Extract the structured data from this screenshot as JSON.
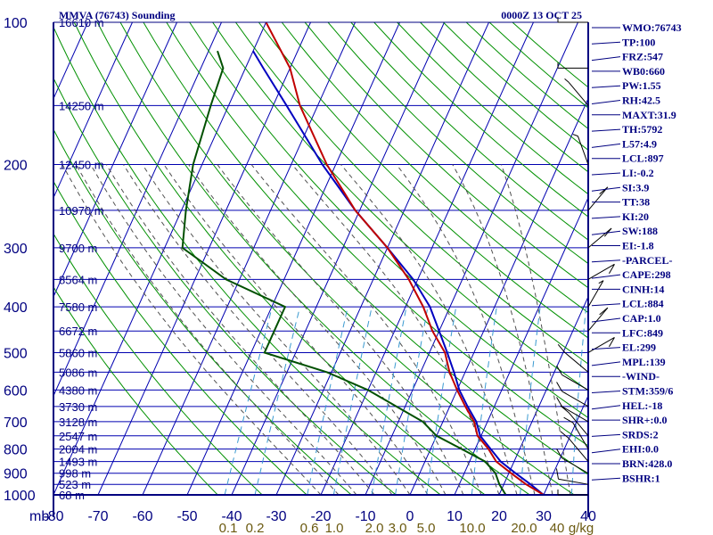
{
  "header": {
    "title": "MMVA (76743) Sounding",
    "datetime": "0000Z 13 OCT 25"
  },
  "chart_data": {
    "type": "skew-t log-p sounding",
    "station": "MMVA",
    "wmo": "76743",
    "pressure_axis": {
      "unit": "mb",
      "range": [
        1000,
        100
      ],
      "ticks": [
        100,
        200,
        300,
        400,
        500,
        600,
        700,
        800,
        900,
        1000
      ]
    },
    "temperature_axis": {
      "unit": "C",
      "range": [
        -80,
        40
      ],
      "ticks": [
        -80,
        -70,
        -60,
        -50,
        -40,
        -30,
        -20,
        -10,
        0,
        10,
        20,
        30,
        40
      ]
    },
    "height_labels": [
      {
        "p": 100,
        "text": "16610 m"
      },
      {
        "p": 150,
        "text": "14250 m"
      },
      {
        "p": 200,
        "text": "12450 m"
      },
      {
        "p": 250,
        "text": "10970 m"
      },
      {
        "p": 300,
        "text": "9700 m"
      },
      {
        "p": 350,
        "text": "8564 m"
      },
      {
        "p": 400,
        "text": "7580 m"
      },
      {
        "p": 450,
        "text": "6672 m"
      },
      {
        "p": 500,
        "text": "5860 m"
      },
      {
        "p": 550,
        "text": "5086 m"
      },
      {
        "p": 600,
        "text": "4380 m"
      },
      {
        "p": 650,
        "text": "3730 m"
      },
      {
        "p": 700,
        "text": "3128 m"
      },
      {
        "p": 750,
        "text": "2547 m"
      },
      {
        "p": 800,
        "text": "2004 m"
      },
      {
        "p": 850,
        "text": "1493 m"
      },
      {
        "p": 900,
        "text": "998 m"
      },
      {
        "p": 950,
        "text": "523 m"
      },
      {
        "p": 1000,
        "text": "68 m"
      }
    ],
    "mixing_ratio_labels": [
      "0.1",
      "0.2",
      "0.6",
      "1.0",
      "2.0",
      "3.0",
      "5.0",
      "10.0",
      "20.0",
      "40",
      "g/kg"
    ],
    "temperature_profile": [
      {
        "p": 1000,
        "t": 30
      },
      {
        "p": 950,
        "t": 25
      },
      {
        "p": 900,
        "t": 20.5
      },
      {
        "p": 850,
        "t": 16
      },
      {
        "p": 800,
        "t": 13
      },
      {
        "p": 750,
        "t": 9.2
      },
      {
        "p": 700,
        "t": 7
      },
      {
        "p": 650,
        "t": 3.5
      },
      {
        "p": 600,
        "t": 0
      },
      {
        "p": 550,
        "t": -3.5
      },
      {
        "p": 500,
        "t": -6.5
      },
      {
        "p": 450,
        "t": -11.5
      },
      {
        "p": 400,
        "t": -16
      },
      {
        "p": 350,
        "t": -22
      },
      {
        "p": 300,
        "t": -30
      },
      {
        "p": 250,
        "t": -41
      },
      {
        "p": 200,
        "t": -52
      },
      {
        "p": 150,
        "t": -64
      },
      {
        "p": 125,
        "t": -70
      },
      {
        "p": 100,
        "t": -80
      }
    ],
    "dewpoint_profile": [
      {
        "p": 1000,
        "t": 21.5
      },
      {
        "p": 950,
        "t": 19
      },
      {
        "p": 900,
        "t": 17
      },
      {
        "p": 850,
        "t": 13.5
      },
      {
        "p": 800,
        "t": 7
      },
      {
        "p": 750,
        "t": 0
      },
      {
        "p": 700,
        "t": -4.5
      },
      {
        "p": 650,
        "t": -12
      },
      {
        "p": 600,
        "t": -20
      },
      {
        "p": 550,
        "t": -31
      },
      {
        "p": 500,
        "t": -47
      },
      {
        "p": 450,
        "t": -47
      },
      {
        "p": 400,
        "t": -47
      },
      {
        "p": 350,
        "t": -63
      },
      {
        "p": 300,
        "t": -76
      },
      {
        "p": 250,
        "t": -79
      },
      {
        "p": 200,
        "t": -82
      },
      {
        "p": 150,
        "t": -84
      },
      {
        "p": 125,
        "t": -85
      },
      {
        "p": 115,
        "t": -88
      }
    ],
    "parcel_profile": [
      {
        "p": 1000,
        "t": 30
      },
      {
        "p": 950,
        "t": 26
      },
      {
        "p": 900,
        "t": 21.5
      },
      {
        "p": 850,
        "t": 17
      },
      {
        "p": 800,
        "t": 13.5
      },
      {
        "p": 750,
        "t": 9.8
      },
      {
        "p": 700,
        "t": 7.5
      },
      {
        "p": 650,
        "t": 4
      },
      {
        "p": 600,
        "t": 0.5
      },
      {
        "p": 550,
        "t": -2.5
      },
      {
        "p": 500,
        "t": -6
      },
      {
        "p": 450,
        "t": -10
      },
      {
        "p": 400,
        "t": -14.5
      },
      {
        "p": 350,
        "t": -21
      },
      {
        "p": 300,
        "t": -30
      },
      {
        "p": 250,
        "t": -41
      },
      {
        "p": 200,
        "t": -53
      },
      {
        "p": 150,
        "t": -67
      },
      {
        "p": 125,
        "t": -76
      },
      {
        "p": 115,
        "t": -80
      }
    ],
    "wind_profile": [
      {
        "p": 1000,
        "dir": 90,
        "spd": 5
      },
      {
        "p": 950,
        "dir": 80,
        "spd": 10
      },
      {
        "p": 900,
        "dir": 60,
        "spd": 10
      },
      {
        "p": 850,
        "dir": 40,
        "spd": 10
      },
      {
        "p": 800,
        "dir": 30,
        "spd": 10
      },
      {
        "p": 750,
        "dir": 40,
        "spd": 10
      },
      {
        "p": 700,
        "dir": 60,
        "spd": 10
      },
      {
        "p": 650,
        "dir": 60,
        "spd": 10
      },
      {
        "p": 600,
        "dir": 60,
        "spd": 10
      },
      {
        "p": 550,
        "dir": 50,
        "spd": 10
      },
      {
        "p": 500,
        "dir": 300,
        "spd": 10
      },
      {
        "p": 450,
        "dir": 320,
        "spd": 10
      },
      {
        "p": 400,
        "dir": 330,
        "spd": 5
      },
      {
        "p": 350,
        "dir": 300,
        "spd": 10
      },
      {
        "p": 300,
        "dir": 310,
        "spd": 10
      },
      {
        "p": 250,
        "dir": 320,
        "spd": 10
      },
      {
        "p": 200,
        "dir": 20,
        "spd": 5
      },
      {
        "p": 150,
        "dir": 40,
        "spd": 5
      },
      {
        "p": 125,
        "dir": 90,
        "spd": 5
      },
      {
        "p": 100,
        "dir": 90,
        "spd": 5
      }
    ]
  },
  "indices": [
    "WMO:76743",
    "TP:100",
    "FRZ:547",
    "WB0:660",
    "PW:1.55",
    "RH:42.5",
    "MAXT:31.9",
    "TH:5792",
    "L57:4.9",
    "LCL:897",
    "LI:-0.2",
    "SI:3.9",
    "TT:38",
    "KI:20",
    "SW:188",
    "EI:-1.8",
    "-PARCEL-",
    "CAPE:298",
    "CINH:14",
    "LCL:884",
    "CAP:1.0",
    "LFC:849",
    "EL:299",
    "MPL:139",
    "-WIND-",
    "STM:359/6",
    "HEL:-18",
    "SHR+:0.0",
    "SRDS:2",
    "EHI:0.0",
    "BRN:428.0",
    "BSHR:1"
  ],
  "colors": {
    "axes": "#000080",
    "isotherm": "#0000b0",
    "isobar": "#0000b0",
    "dry_adiabat": "#009000",
    "moist_adiabat": "#505050",
    "mixing_ratio": "#3a9ad0",
    "temperature": "#c00000",
    "dewpoint": "#005000",
    "parcel": "#0000c0",
    "mixing_label": "#6b5a10"
  }
}
